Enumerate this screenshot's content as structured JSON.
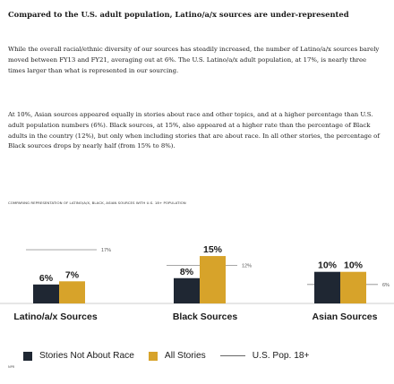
{
  "headline": "Compared to the U.S. adult population, Latino/a/x sources are under-represented",
  "paragraphs": [
    "While the overall racial/ethnic diversity of our sources has steadily increased, the number of Latino/a/x sources barely moved between FY13 and FY21, averaging out at 6%. The U.S. Latino/a/x adult population, at 17%, is nearly three times larger than what is represented in our sourcing.",
    "At 10%, Asian sources appeared equally in stories about race and other topics, and at a higher percentage than U.S. adult population numbers (6%). Black sources, at 15%, also appeared at a higher rate than the percentage of Black adults in the country (12%), but only when including stories that are about race. In all other stories, the percentage of Black sources drops by nearly half (from 15% to 8%)."
  ],
  "footnote": "NPR",
  "colors": {
    "not_about_race": "#1f2733",
    "all_stories": "#d7a32a",
    "population_line": "#8a8a8a"
  },
  "chart_data": {
    "type": "bar",
    "title": "COMPARING REPRESENTATION OF LATINO/A/X, BLACK, ASIAN SOURCES WITH U.S. 18+ POPULATION",
    "categories": [
      "Latino/a/x Sources",
      "Black Sources",
      "Asian Sources"
    ],
    "series": [
      {
        "name": "Stories Not About Race",
        "values": [
          6,
          8,
          10
        ],
        "labels": [
          "6%",
          "8%",
          "10%"
        ]
      },
      {
        "name": "All Stories",
        "values": [
          7,
          15,
          10
        ],
        "labels": [
          "7%",
          "15%",
          "10%"
        ]
      }
    ],
    "reference_line": {
      "name": "U.S. Pop. 18+",
      "values": [
        17,
        12,
        6
      ],
      "labels": [
        "17%",
        "12%",
        "6%"
      ]
    },
    "ylim": [
      0,
      17
    ],
    "legend": [
      "Stories Not About Race",
      "All Stories",
      "U.S. Pop. 18+"
    ],
    "legend_position": "bottom",
    "grid": false
  }
}
